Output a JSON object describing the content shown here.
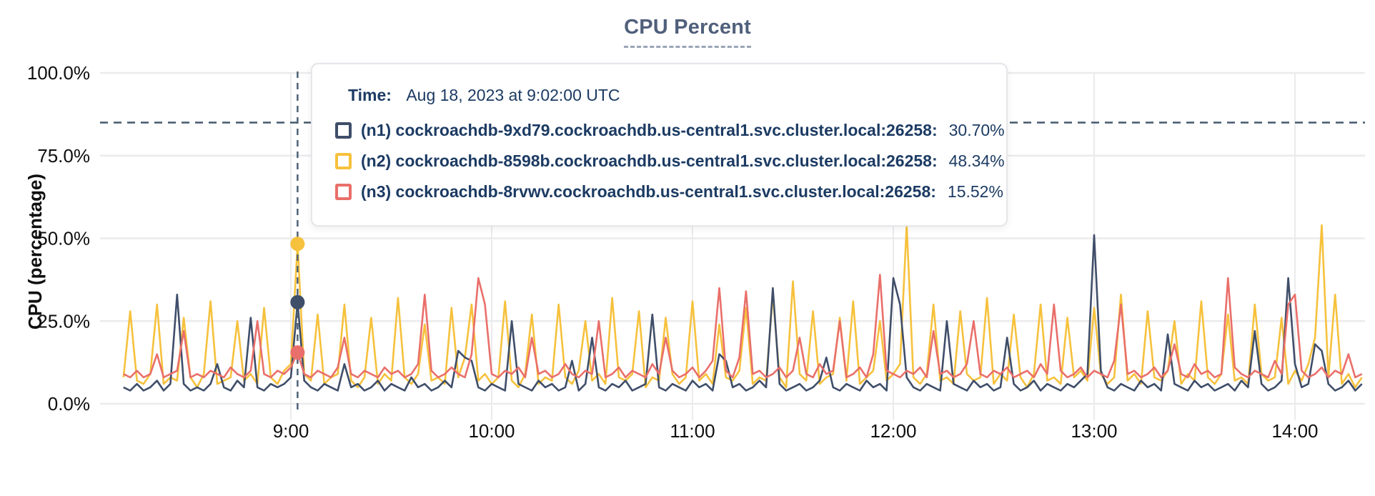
{
  "chart_data": {
    "type": "line",
    "title": "CPU Percent",
    "ylabel": "CPU (percentage)",
    "xlabel": "",
    "ylim": [
      0,
      100
    ],
    "grid": true,
    "legend_position": "tooltip-overlay",
    "y_ticks": [
      {
        "value": 0,
        "label": "0.0%"
      },
      {
        "value": 25,
        "label": "25.0%"
      },
      {
        "value": 50,
        "label": "50.0%"
      },
      {
        "value": 75,
        "label": "75.0%"
      },
      {
        "value": 100,
        "label": "100.0%"
      }
    ],
    "x_ticks": [
      {
        "minute": 540,
        "label": "9:00"
      },
      {
        "minute": 600,
        "label": "10:00"
      },
      {
        "minute": 660,
        "label": "11:00"
      },
      {
        "minute": 720,
        "label": "12:00"
      },
      {
        "minute": 780,
        "label": "13:00"
      },
      {
        "minute": 840,
        "label": "14:00"
      }
    ],
    "x_start_minute": 490,
    "x_step_minute": 2,
    "threshold": {
      "value": 85,
      "color": "#44586e"
    },
    "cursor": {
      "minute": 542,
      "color": "#4e6276"
    },
    "tooltip": {
      "time_label": "Time:",
      "time_value": "Aug 18, 2023 at 9:02:00 UTC"
    },
    "grid_color": "#ebebed",
    "axis_text_color": "#0f0f10",
    "series": [
      {
        "name": "(n1) cockroachdb-9xd79.cockroachdb.us-central1.svc.cluster.local:26258:",
        "color": "#3f4e69",
        "cursor_value": 30.7,
        "cursor_value_label": "30.70%",
        "values": [
          5,
          4,
          6,
          4,
          5,
          7,
          4,
          6,
          33,
          6,
          4,
          5,
          4,
          6,
          12,
          5,
          4,
          7,
          5,
          26,
          5,
          4,
          6,
          5,
          6,
          8,
          30.7,
          7,
          5,
          4,
          6,
          5,
          4,
          12,
          5,
          6,
          4,
          5,
          7,
          4,
          6,
          5,
          4,
          8,
          5,
          6,
          4,
          5,
          7,
          5,
          16,
          14,
          13,
          5,
          4,
          6,
          5,
          4,
          25,
          6,
          5,
          4,
          7,
          5,
          6,
          4,
          5,
          13,
          4,
          6,
          20,
          5,
          4,
          6,
          5,
          7,
          4,
          5,
          6,
          27,
          5,
          4,
          6,
          5,
          4,
          7,
          5,
          6,
          4,
          15,
          13,
          5,
          6,
          4,
          5,
          7,
          5,
          35,
          6,
          4,
          5,
          6,
          4,
          5,
          7,
          14,
          5,
          4,
          6,
          5,
          4,
          7,
          5,
          6,
          4,
          38,
          30,
          8,
          5,
          4,
          6,
          5,
          4,
          25,
          6,
          5,
          4,
          7,
          5,
          6,
          4,
          5,
          20,
          6,
          4,
          5,
          7,
          4,
          6,
          5,
          4,
          6,
          5,
          7,
          9,
          51,
          10,
          5,
          4,
          6,
          5,
          4,
          7,
          5,
          6,
          4,
          21,
          6,
          5,
          4,
          7,
          5,
          6,
          4,
          5,
          6,
          4,
          7,
          5,
          22,
          6,
          4,
          5,
          7,
          38,
          12,
          5,
          6,
          18,
          16,
          6,
          4,
          5,
          7,
          4,
          6
        ]
      },
      {
        "name": "(n2) cockroachdb-8598b.cockroachdb.us-central1.svc.cluster.local:26258:",
        "color": "#f6c13c",
        "cursor_value": 48.34,
        "cursor_value_label": "48.34%",
        "values": [
          8,
          28,
          7,
          6,
          9,
          30,
          6,
          8,
          7,
          26,
          8,
          5,
          9,
          31,
          6,
          7,
          8,
          25,
          7,
          9,
          6,
          29,
          8,
          6,
          10,
          12,
          48.34,
          9,
          7,
          27,
          6,
          8,
          9,
          30,
          7,
          5,
          8,
          26,
          6,
          9,
          7,
          32,
          8,
          6,
          9,
          24,
          7,
          8,
          6,
          29,
          8,
          14,
          30,
          7,
          9,
          6,
          8,
          31,
          7,
          5,
          9,
          27,
          6,
          8,
          7,
          30,
          8,
          6,
          10,
          25,
          7,
          9,
          6,
          32,
          8,
          7,
          9,
          28,
          5,
          8,
          7,
          26,
          9,
          6,
          8,
          31,
          7,
          9,
          6,
          24,
          8,
          7,
          10,
          29,
          6,
          8,
          7,
          33,
          8,
          5,
          37,
          9,
          7,
          28,
          6,
          8,
          9,
          26,
          7,
          31,
          6,
          8,
          10,
          25,
          7,
          9,
          12,
          54,
          8,
          6,
          9,
          30,
          7,
          8,
          6,
          28,
          9,
          7,
          8,
          32,
          6,
          9,
          7,
          27,
          8,
          5,
          9,
          30,
          7,
          8,
          6,
          26,
          8,
          10,
          7,
          29,
          9,
          6,
          8,
          33,
          7,
          9,
          6,
          28,
          8,
          7,
          10,
          25,
          6,
          9,
          7,
          31,
          8,
          6,
          9,
          27,
          7,
          8,
          6,
          30,
          9,
          7,
          8,
          26,
          6,
          10,
          7,
          12,
          20,
          54,
          8,
          33,
          6,
          9,
          5,
          8
        ]
      },
      {
        "name": "(n3) cockroachdb-8rvwv.cockroachdb.us-central1.svc.cluster.local:26258:",
        "color": "#e96f6a",
        "cursor_value": 15.52,
        "cursor_value_label": "15.52%",
        "values": [
          9,
          8,
          10,
          8,
          9,
          15,
          8,
          9,
          10,
          22,
          8,
          9,
          8,
          10,
          9,
          8,
          11,
          9,
          8,
          10,
          25,
          9,
          8,
          10,
          9,
          11,
          15.52,
          9,
          8,
          10,
          9,
          8,
          11,
          20,
          9,
          8,
          10,
          9,
          8,
          11,
          9,
          10,
          8,
          9,
          12,
          33,
          10,
          8,
          9,
          11,
          9,
          8,
          15,
          38,
          30,
          9,
          8,
          10,
          9,
          11,
          8,
          20,
          9,
          10,
          8,
          9,
          12,
          9,
          8,
          10,
          9,
          25,
          8,
          9,
          11,
          8,
          10,
          9,
          8,
          12,
          9,
          20,
          10,
          8,
          9,
          11,
          8,
          10,
          13,
          35,
          10,
          8,
          14,
          34,
          9,
          10,
          8,
          9,
          11,
          8,
          10,
          20,
          9,
          8,
          12,
          9,
          10,
          25,
          8,
          9,
          11,
          8,
          15,
          39,
          10,
          9,
          8,
          10,
          9,
          11,
          8,
          22,
          9,
          10,
          8,
          9,
          12,
          25,
          9,
          8,
          10,
          9,
          11,
          8,
          9,
          10,
          8,
          12,
          9,
          30,
          10,
          8,
          9,
          11,
          8,
          10,
          9,
          8,
          13,
          30,
          9,
          10,
          8,
          9,
          11,
          8,
          10,
          18,
          9,
          8,
          12,
          9,
          10,
          8,
          9,
          38,
          11,
          9,
          8,
          10,
          9,
          8,
          13,
          9,
          30,
          33,
          10,
          8,
          9,
          11,
          8,
          10,
          9,
          15,
          8,
          9
        ]
      }
    ]
  }
}
